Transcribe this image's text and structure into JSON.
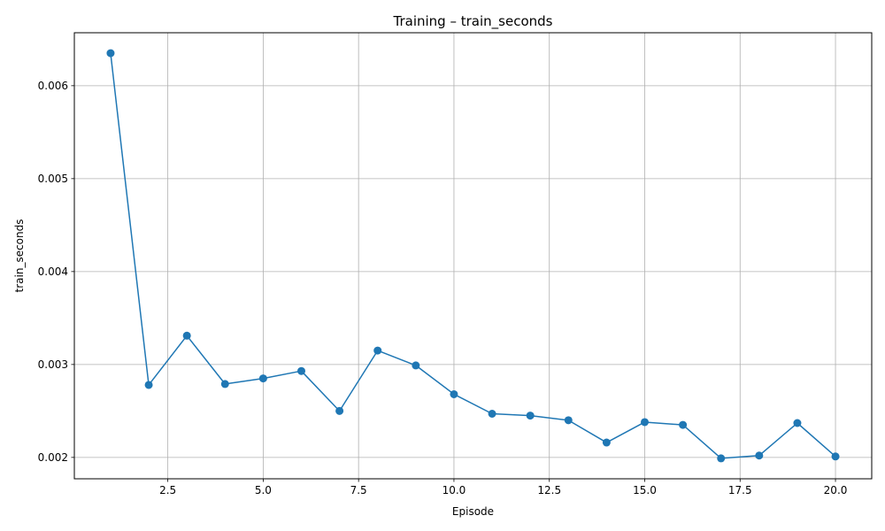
{
  "chart_data": {
    "type": "line",
    "title": "Training – train_seconds",
    "xlabel": "Episode",
    "ylabel": "train_seconds",
    "x": [
      1,
      2,
      3,
      4,
      5,
      6,
      7,
      8,
      9,
      10,
      11,
      12,
      13,
      14,
      15,
      16,
      17,
      18,
      19,
      20
    ],
    "series": [
      {
        "values": [
          0.00635,
          0.00278,
          0.00331,
          0.00279,
          0.00285,
          0.00293,
          0.0025,
          0.00315,
          0.00299,
          0.00268,
          0.00247,
          0.00245,
          0.0024,
          0.00216,
          0.00238,
          0.00235,
          0.00199,
          0.00202,
          0.00237,
          0.00201
        ]
      }
    ],
    "xlim": [
      0.05,
      20.95
    ],
    "ylim": [
      0.00177,
      0.00657
    ],
    "xticks": [
      2.5,
      5.0,
      7.5,
      10.0,
      12.5,
      15.0,
      17.5,
      20.0
    ],
    "xtick_labels": [
      "2.5",
      "5.0",
      "7.5",
      "10.0",
      "12.5",
      "15.0",
      "17.5",
      "20.0"
    ],
    "yticks": [
      0.002,
      0.003,
      0.004,
      0.005,
      0.006
    ],
    "ytick_labels": [
      "0.002",
      "0.003",
      "0.004",
      "0.005",
      "0.006"
    ],
    "grid": true,
    "markers": "circle",
    "line_color": "#1f77b4",
    "grid_color": "#b0b0b0"
  }
}
